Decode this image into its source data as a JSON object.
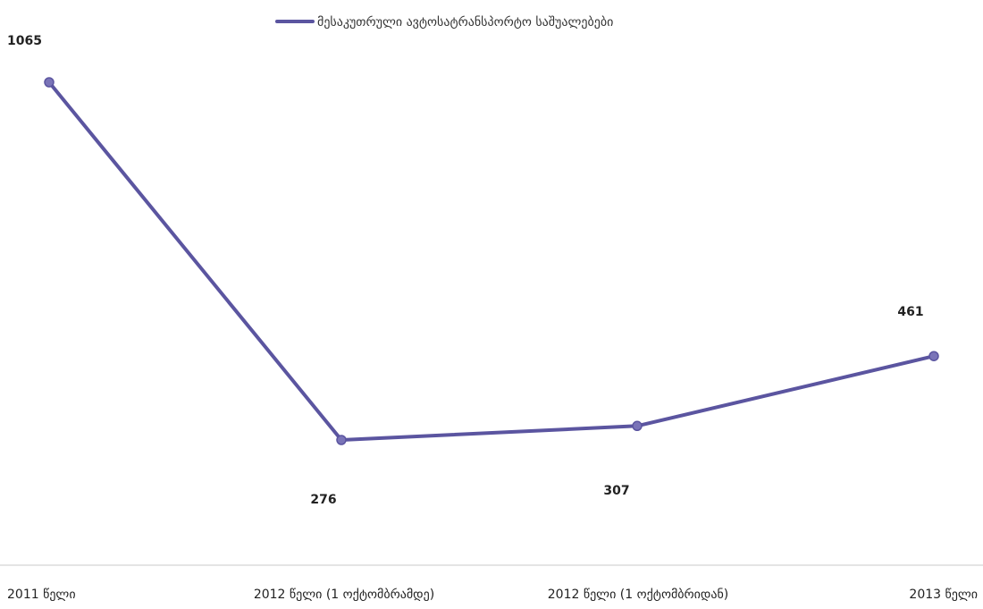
{
  "chart_data": {
    "type": "line",
    "categories": [
      "2011 წელი",
      "2012 წელი (1 ოქტომბრამდე)",
      "2012 წელი (1 ოქტომბრიდან)",
      "2013 წელი"
    ],
    "series": [
      {
        "name": "მესაკუთრული ავტოსატრანსპორტო საშუალებები",
        "values": [
          1065,
          276,
          307,
          461
        ],
        "color": "#5b55a0"
      }
    ],
    "data_labels": [
      "1065",
      "276",
      "307",
      "461"
    ],
    "legend_position": "top",
    "grid": false,
    "ylim": [
      0,
      1100
    ]
  }
}
